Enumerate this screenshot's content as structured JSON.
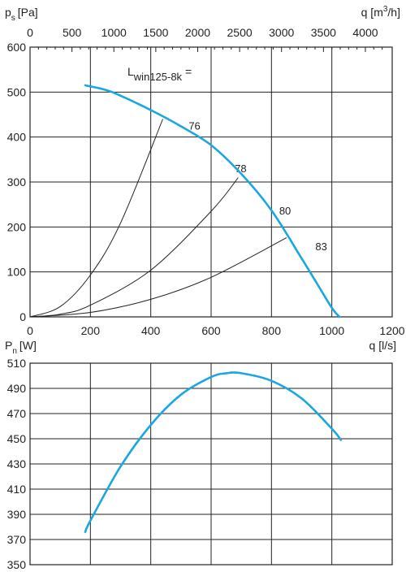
{
  "chart_data": [
    {
      "type": "line",
      "ylabel_main": "p",
      "ylabel_sub": "s",
      "ylabel_unit": "[Pa]",
      "xlabel": "q [l/s]",
      "x2label_main": "q [m",
      "x2label_sup": "3",
      "x2label_end": "/h]",
      "annotation_main": "L",
      "annotation_sub": "win125-8k",
      "annotation_end": " =",
      "xlim": [
        0,
        1200
      ],
      "ylim": [
        0,
        600
      ],
      "x_ticks": [
        0,
        200,
        400,
        600,
        800,
        1000,
        1200
      ],
      "y_ticks": [
        0,
        100,
        200,
        300,
        400,
        500,
        600
      ],
      "x2_ticks": [
        0,
        500,
        1000,
        1500,
        2000,
        2500,
        3000,
        3500,
        4000
      ],
      "grid": true,
      "series": [
        {
          "color": "#19a7e0",
          "x": [
            183,
            250,
            300,
            400,
            500,
            600,
            700,
            800,
            900,
            950,
            1000,
            1025
          ],
          "y": [
            515,
            505,
            492,
            460,
            424,
            382,
            318,
            237,
            130,
            75,
            20,
            0
          ]
        }
      ],
      "system_curves": [
        {
          "label": "76",
          "x": [
            0,
            100,
            200,
            300,
            440
          ],
          "y": [
            0,
            23,
            93,
            209,
            440
          ]
        },
        {
          "label": "78",
          "x": [
            0,
            100,
            200,
            400,
            600,
            690
          ],
          "y": [
            0,
            6,
            26,
            104,
            235,
            310
          ]
        },
        {
          "label": "80",
          "x": [
            0,
            200,
            400,
            600,
            850
          ],
          "y": [
            0,
            10,
            39,
            88,
            176
          ]
        },
        {
          "label": "83",
          "x": [],
          "y": []
        }
      ]
    },
    {
      "type": "line",
      "ylabel_main": "P",
      "ylabel_sub": "n",
      "ylabel_unit": "[W]",
      "xlim": [
        0,
        1200
      ],
      "ylim": [
        350,
        510
      ],
      "y_ticks": [
        350,
        370,
        390,
        410,
        430,
        450,
        470,
        490,
        510
      ],
      "grid": true,
      "series": [
        {
          "color": "#19a7e0",
          "x": [
            183,
            200,
            300,
            400,
            500,
            600,
            650,
            700,
            800,
            900,
            1000,
            1030
          ],
          "y": [
            376,
            385,
            428,
            461,
            485,
            499,
            502,
            502,
            496,
            482,
            458,
            449
          ]
        }
      ]
    }
  ]
}
